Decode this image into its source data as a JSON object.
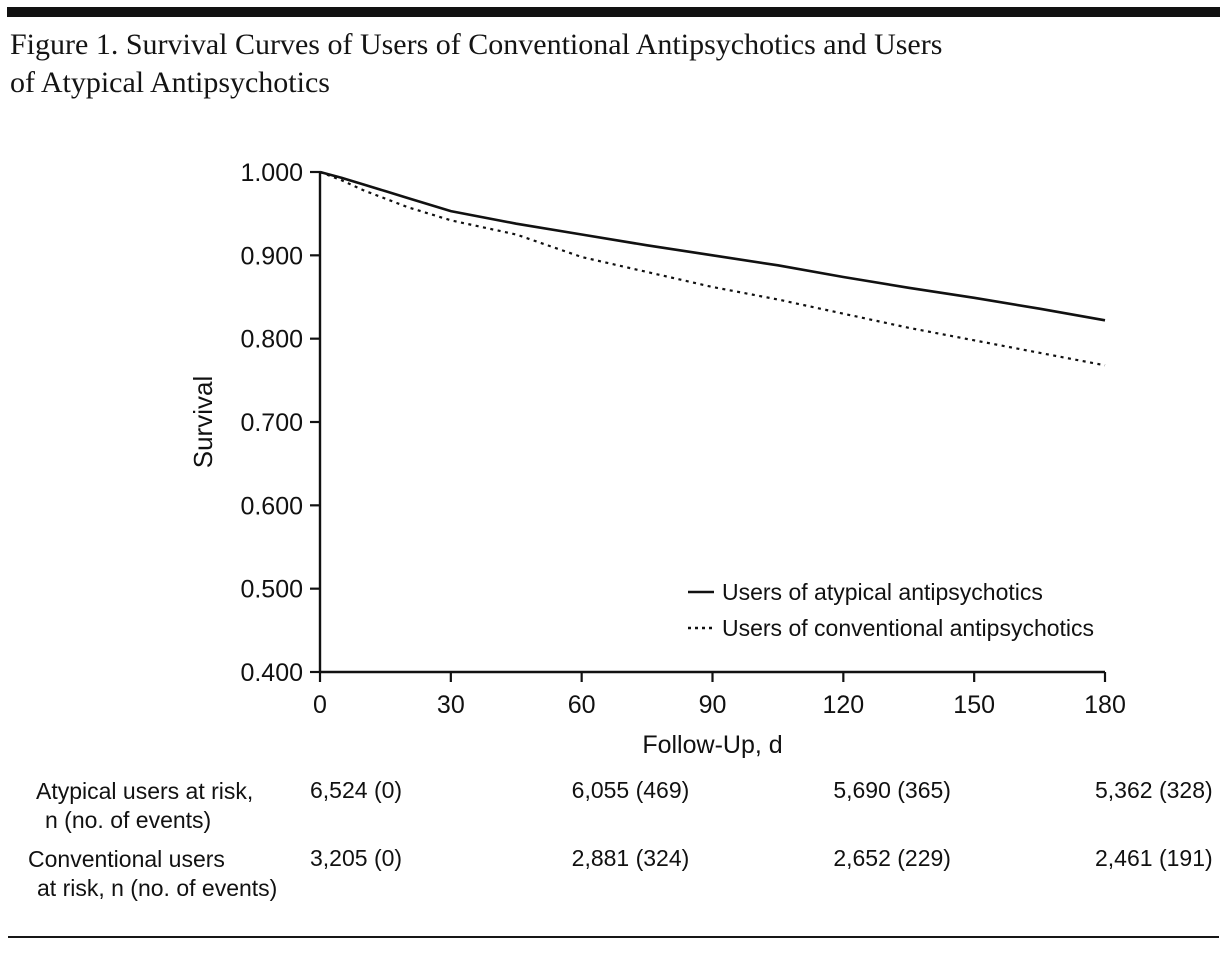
{
  "figure": {
    "title": "Figure 1. Survival Curves of Users of Conventional Antipsychotics and Users of Atypical Antipsychotics",
    "title_lines": [
      "Figure 1. Survival Curves of Users of Conventional Antipsychotics and Users",
      "of Atypical Antipsychotics"
    ]
  },
  "colors": {
    "ink": "#111111",
    "background": "#ffffff"
  },
  "chart_data": {
    "type": "line",
    "title": "",
    "xlabel": "Follow-Up, d",
    "ylabel": "Survival",
    "xlim": [
      0,
      180
    ],
    "ylim": [
      0.4,
      1.0
    ],
    "xticks": [
      0,
      30,
      60,
      90,
      120,
      150,
      180
    ],
    "yticks": [
      "1.000",
      "0.900",
      "0.800",
      "0.700",
      "0.600",
      "0.500",
      "0.400"
    ],
    "grid": false,
    "legend_position": "inside lower right",
    "series": [
      {
        "name": "Users of atypical antipsychotics",
        "style": "solid",
        "x": [
          0,
          5,
          10,
          15,
          20,
          25,
          30,
          45,
          60,
          75,
          90,
          105,
          120,
          135,
          150,
          165,
          180
        ],
        "y": [
          1.0,
          0.993,
          0.985,
          0.977,
          0.969,
          0.961,
          0.953,
          0.938,
          0.925,
          0.912,
          0.9,
          0.888,
          0.874,
          0.861,
          0.849,
          0.836,
          0.822
        ]
      },
      {
        "name": "Users of conventional antipsychotics",
        "style": "dashed",
        "x": [
          0,
          5,
          10,
          15,
          20,
          25,
          30,
          45,
          60,
          75,
          90,
          105,
          120,
          135,
          150,
          165,
          180
        ],
        "y": [
          1.0,
          0.99,
          0.978,
          0.968,
          0.958,
          0.95,
          0.942,
          0.925,
          0.898,
          0.88,
          0.862,
          0.847,
          0.83,
          0.813,
          0.798,
          0.783,
          0.768
        ]
      }
    ]
  },
  "risk_table": {
    "value_days": [
      0,
      60,
      120,
      180
    ],
    "rows": [
      {
        "label_lines": [
          "Atypical users at risk,",
          "n (no. of events)"
        ],
        "values": [
          "6,524 (0)",
          "6,055 (469)",
          "5,690 (365)",
          "5,362 (328)"
        ]
      },
      {
        "label_lines": [
          "Conventional users",
          "at risk, n (no. of events)"
        ],
        "values": [
          "3,205 (0)",
          "2,881 (324)",
          "2,652 (229)",
          "2,461 (191)"
        ]
      }
    ]
  }
}
